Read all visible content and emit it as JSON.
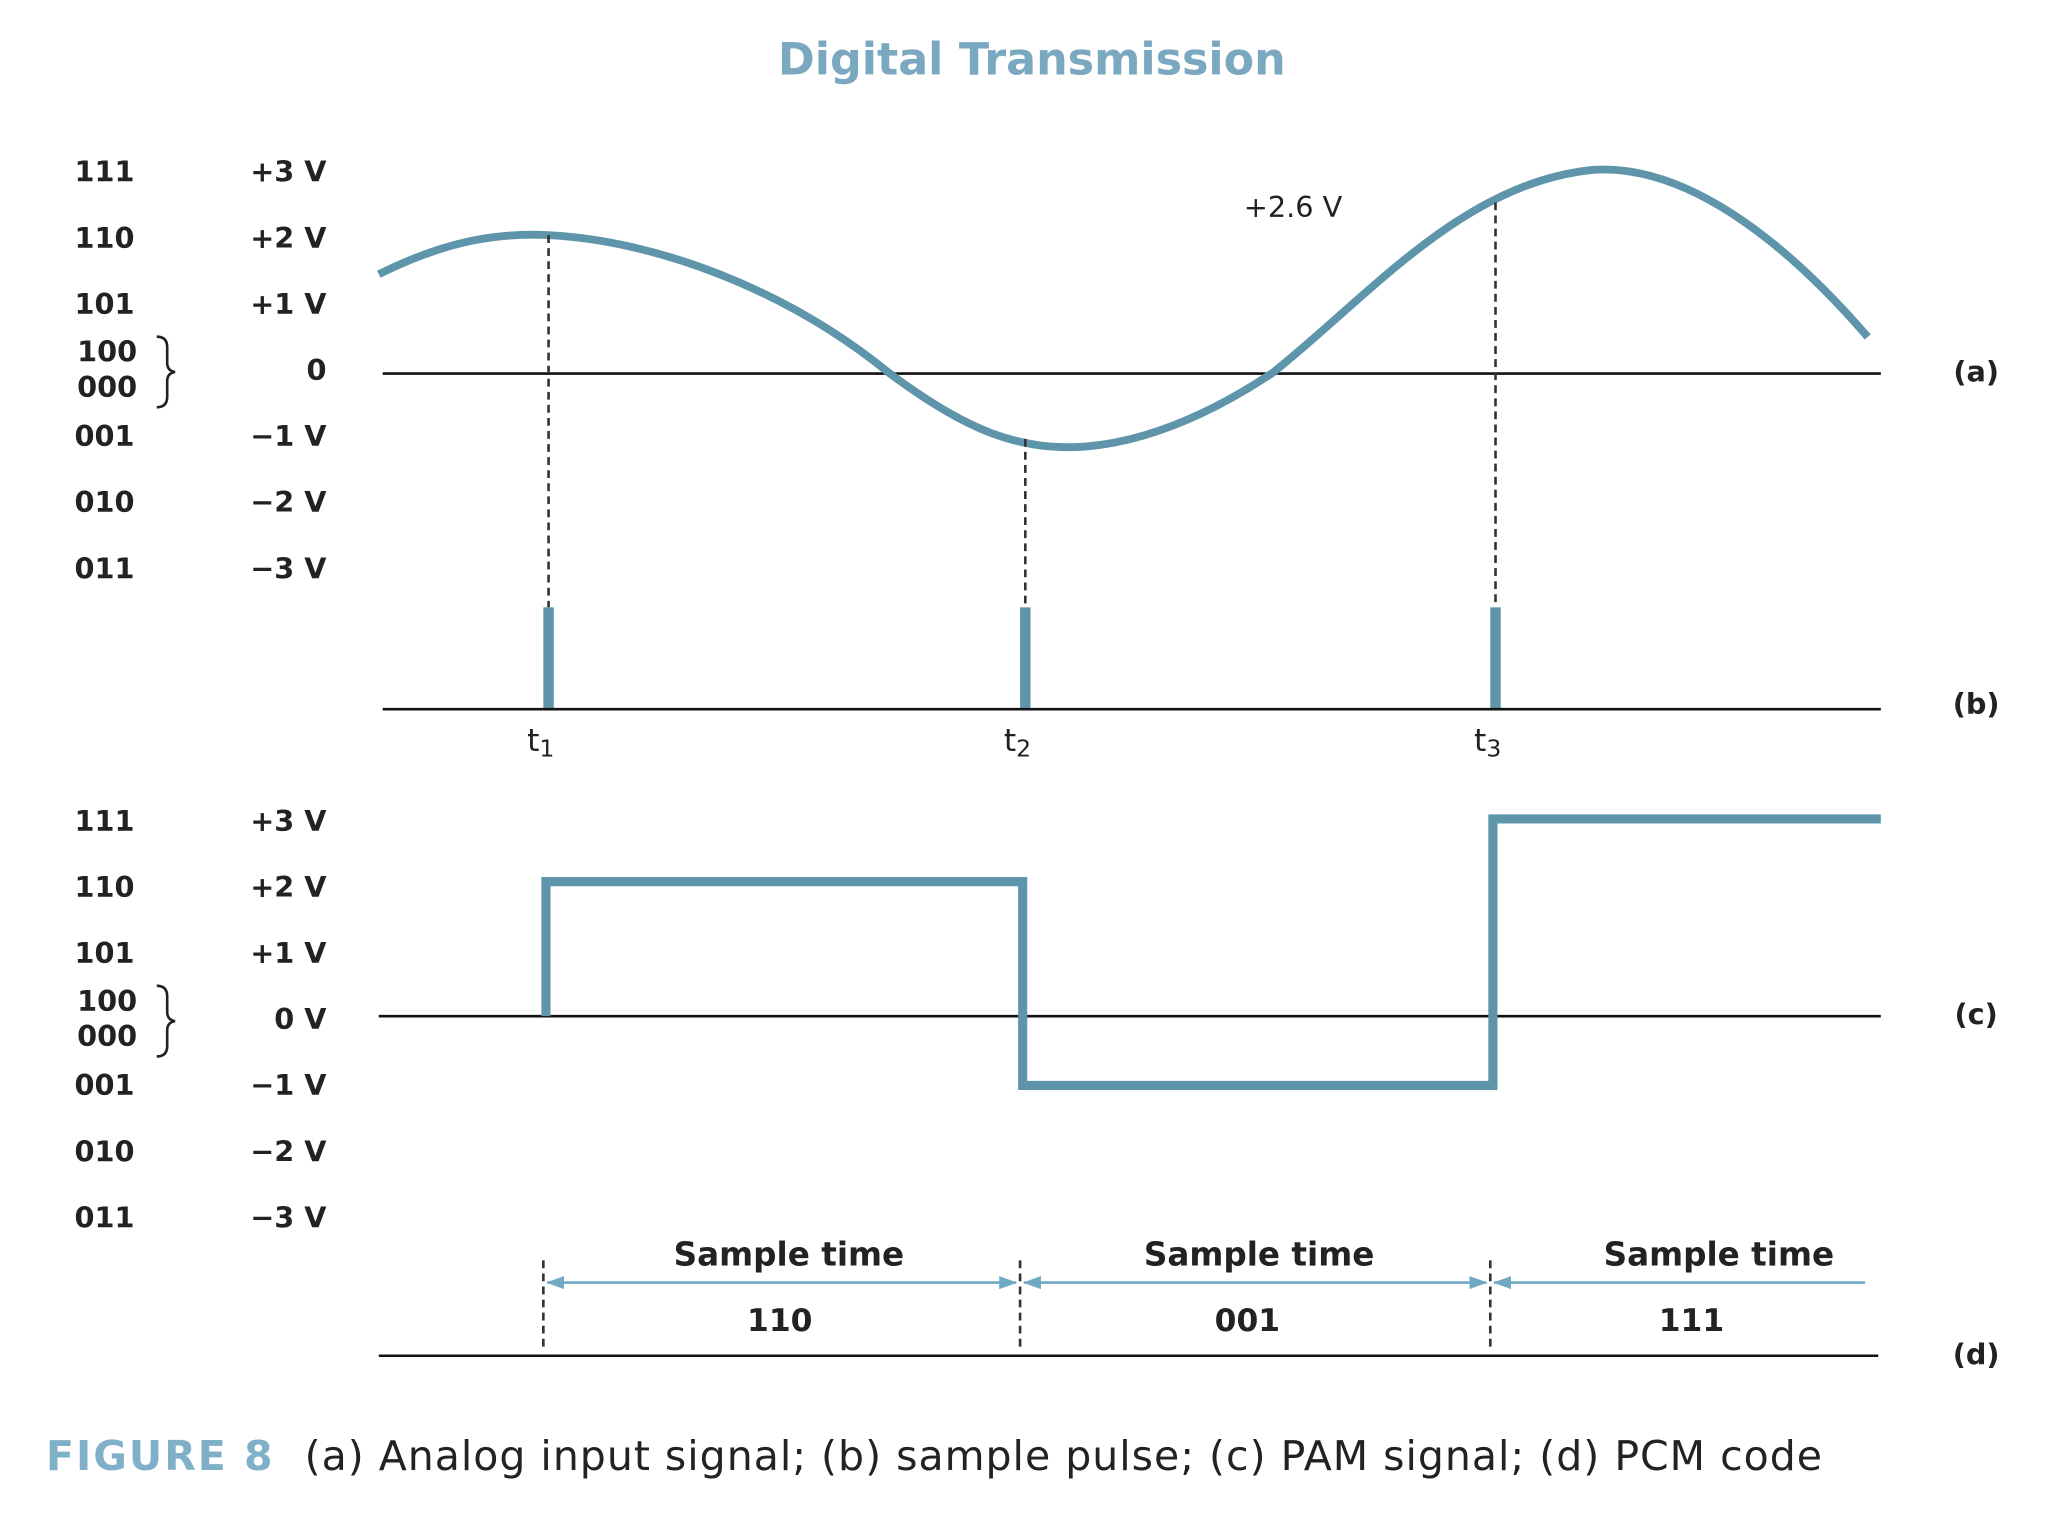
{
  "title": "Digital Transmission",
  "panel_a": {
    "label": "(a)",
    "annotation": "+2.6 V",
    "levels": [
      {
        "codes": [
          "111"
        ],
        "voltage": "+3 V"
      },
      {
        "codes": [
          "110"
        ],
        "voltage": "+2 V"
      },
      {
        "codes": [
          "101"
        ],
        "voltage": "+1 V"
      },
      {
        "codes": [
          "100",
          "000"
        ],
        "voltage": "0"
      },
      {
        "codes": [
          "001"
        ],
        "voltage": "−1 V"
      },
      {
        "codes": [
          "010"
        ],
        "voltage": "−2 V"
      },
      {
        "codes": [
          "011"
        ],
        "voltage": "−3 V"
      }
    ]
  },
  "panel_b": {
    "label": "(b)",
    "times": [
      {
        "base": "t",
        "sub": "1"
      },
      {
        "base": "t",
        "sub": "2"
      },
      {
        "base": "t",
        "sub": "3"
      }
    ]
  },
  "panel_c": {
    "label": "(c)",
    "levels": [
      {
        "codes": [
          "111"
        ],
        "voltage": "+3 V"
      },
      {
        "codes": [
          "110"
        ],
        "voltage": "+2 V"
      },
      {
        "codes": [
          "101"
        ],
        "voltage": "+1 V"
      },
      {
        "codes": [
          "100",
          "000"
        ],
        "voltage": "0 V"
      },
      {
        "codes": [
          "001"
        ],
        "voltage": "−1 V"
      },
      {
        "codes": [
          "010"
        ],
        "voltage": "−2 V"
      },
      {
        "codes": [
          "011"
        ],
        "voltage": "−3 V"
      }
    ]
  },
  "panel_d": {
    "label": "(d)",
    "intervals": [
      {
        "label": "Sample time",
        "code": "110"
      },
      {
        "label": "Sample time",
        "code": "001"
      },
      {
        "label": "Sample time",
        "code": "111"
      }
    ]
  },
  "caption": {
    "figure": "FIGURE 8",
    "text": "(a) Analog input signal; (b) sample pulse; (c) PAM signal; (d) PCM code"
  }
}
